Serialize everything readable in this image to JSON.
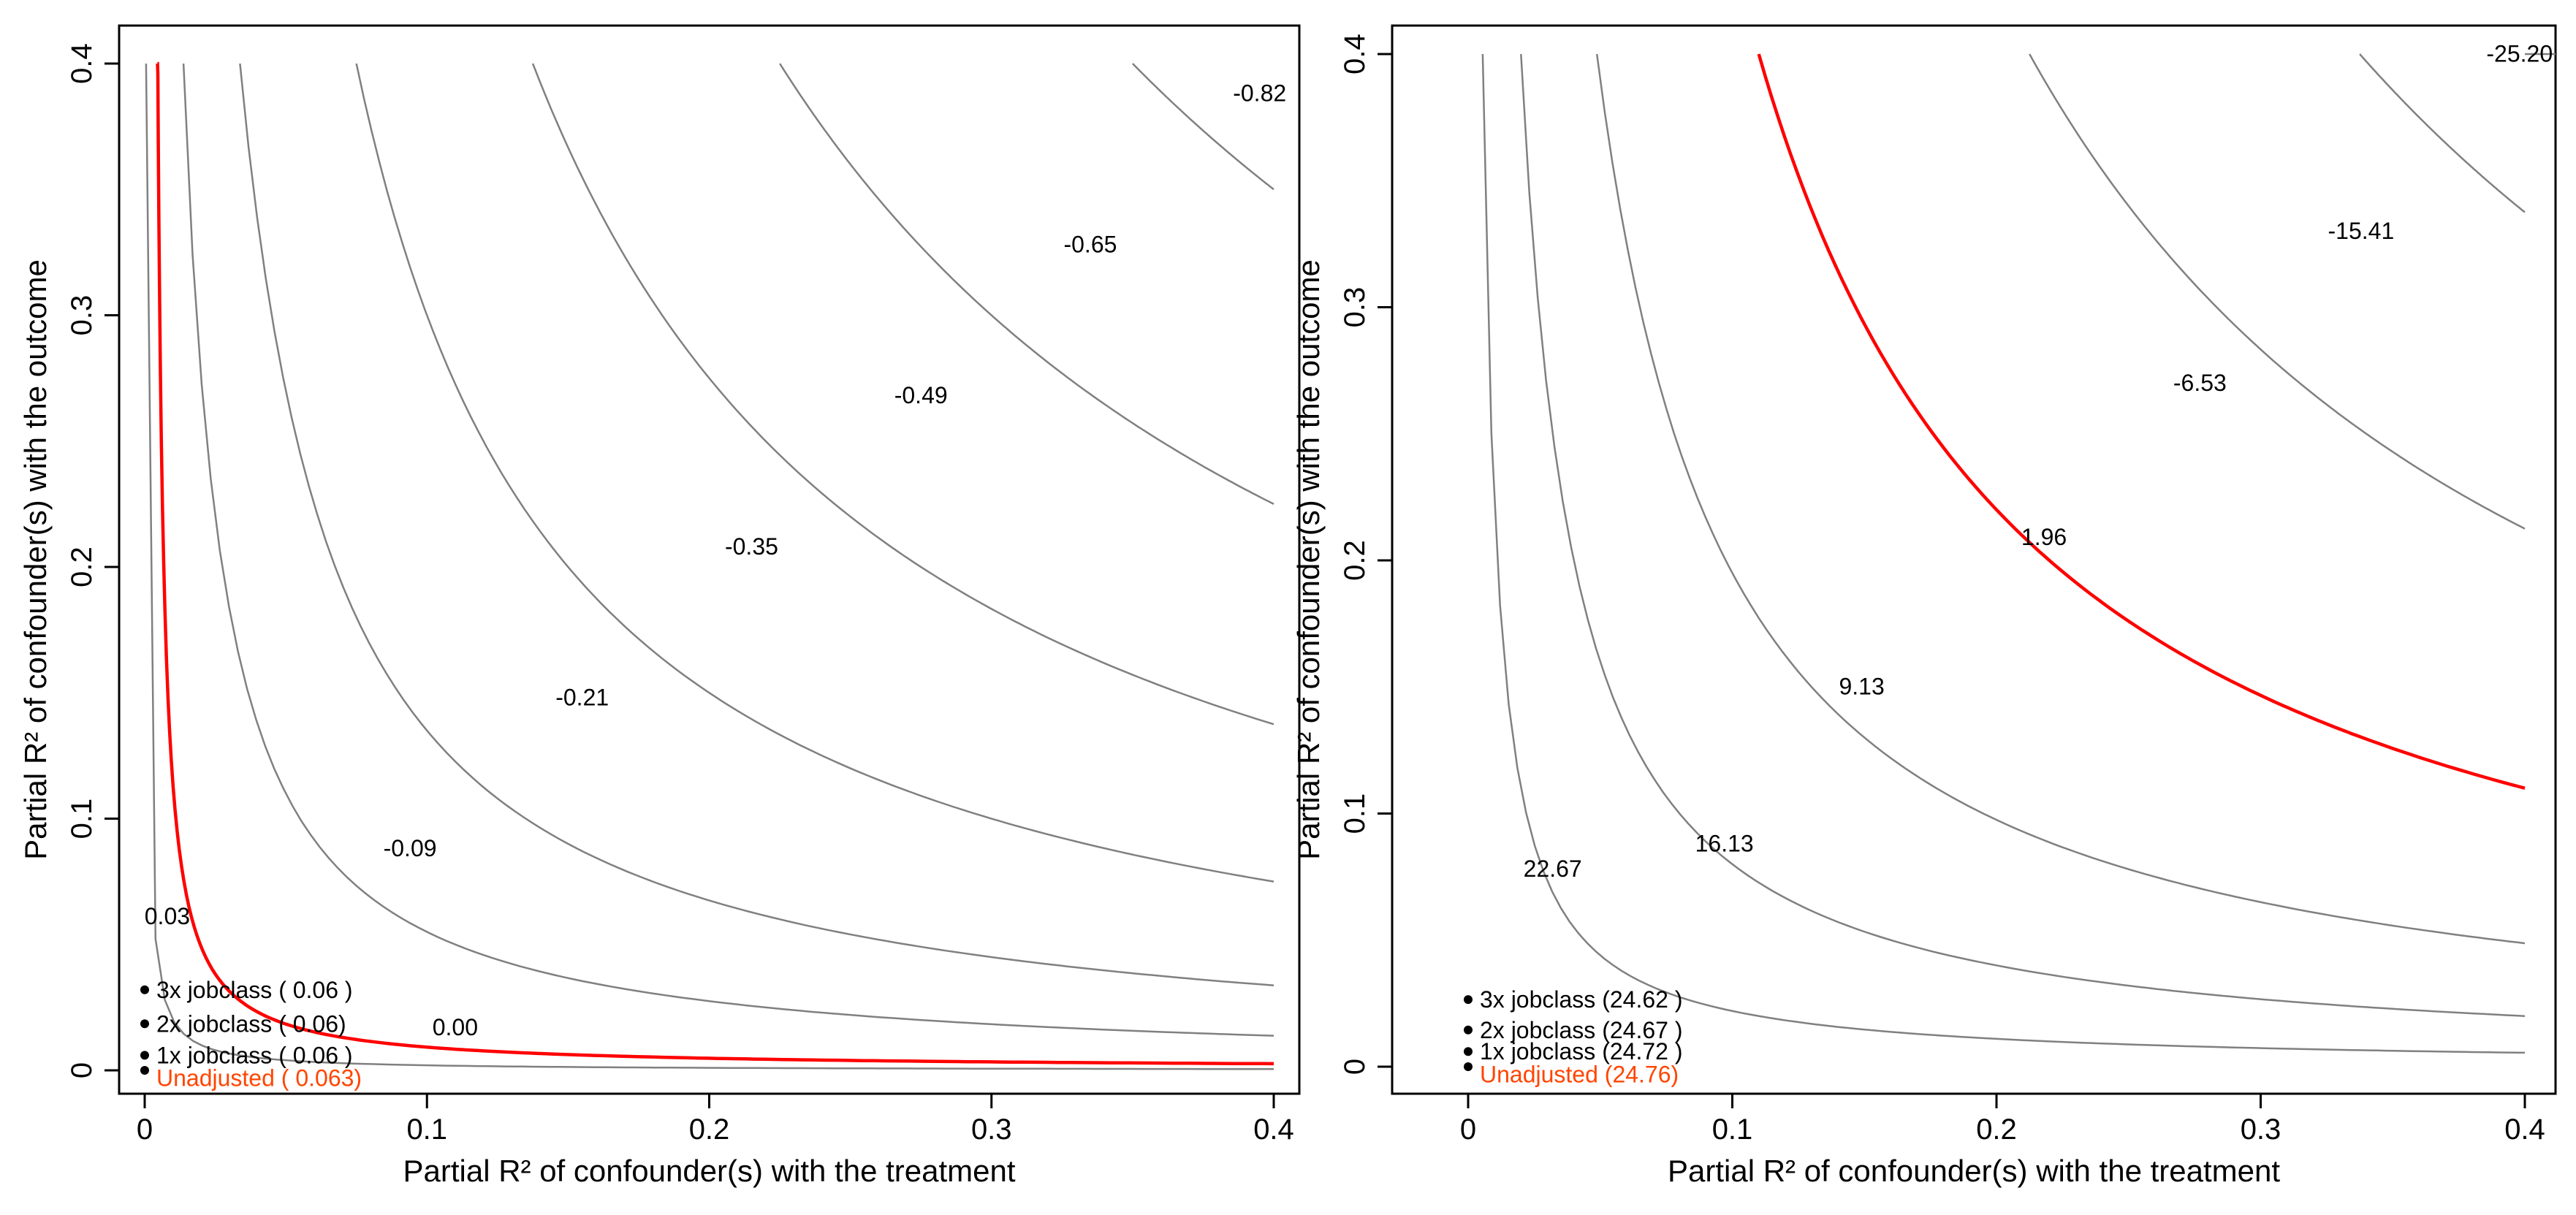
{
  "chart_data": [
    {
      "type": "contour",
      "xlabel": "Partial R² of confounder(s) with the treatment",
      "ylabel": "Partial R² of confounder(s) with the outcome",
      "xlim": [
        0,
        0.4
      ],
      "ylim": [
        0,
        0.4
      ],
      "xticks": [
        "0",
        "0.1",
        "0.2",
        "0.3",
        "0.4"
      ],
      "yticks": [
        "0",
        "0.1",
        "0.2",
        "0.3",
        "0.4"
      ],
      "contours": [
        {
          "level": "0.03",
          "k": 0.0002,
          "label_x": 0.008,
          "label_y": 0.058
        },
        {
          "level": "-0.09",
          "k": 0.0055,
          "label_x": 0.094,
          "label_y": 0.085
        },
        {
          "level": "-0.21",
          "k": 0.0135,
          "label_x": 0.155,
          "label_y": 0.145
        },
        {
          "level": "-0.35",
          "k": 0.03,
          "label_x": 0.215,
          "label_y": 0.205
        },
        {
          "level": "-0.49",
          "k": 0.055,
          "label_x": 0.275,
          "label_y": 0.265
        },
        {
          "level": "-0.65",
          "k": 0.09,
          "label_x": 0.335,
          "label_y": 0.325
        },
        {
          "level": "-0.82",
          "k": 0.14,
          "label_x": 0.395,
          "label_y": 0.385
        }
      ],
      "threshold": {
        "level": "0.00",
        "color": "#ff0000",
        "label_x": 0.11,
        "label_y": 0.014
      },
      "bounds": [
        {
          "label": "1x jobclass ( 0.06 )",
          "x": 0.0,
          "y": 0.006
        },
        {
          "label": "2x jobclass ( 0.06)",
          "x": 0.0,
          "y": 0.0185
        },
        {
          "label": "3x jobclass ( 0.06 )",
          "x": 0.0,
          "y": 0.032
        }
      ],
      "unadjusted": {
        "label": "Unadjusted ( 0.063)",
        "x": 0.0,
        "y": -0.003
      }
    },
    {
      "type": "contour",
      "xlabel": "Partial R² of confounder(s) with the treatment",
      "ylabel": "Partial R² of confounder(s) with the outcome",
      "xlim": [
        0,
        0.4
      ],
      "ylim": [
        0,
        0.4
      ],
      "xticks": [
        "0",
        "0.1",
        "0.2",
        "0.3",
        "0.4"
      ],
      "yticks": [
        "0",
        "0.1",
        "0.2",
        "0.3",
        "0.4"
      ],
      "contours": [
        {
          "level": "22.67",
          "k": 0.0022,
          "label_x": 0.032,
          "label_y": 0.075
        },
        {
          "level": "16.13",
          "k": 0.008,
          "label_x": 0.097,
          "label_y": 0.085
        },
        {
          "level": "9.13",
          "k": 0.0195,
          "label_x": 0.149,
          "label_y": 0.147
        },
        {
          "level": "-6.53",
          "k": 0.085,
          "label_x": 0.277,
          "label_y": 0.267
        },
        {
          "level": "-15.41",
          "k": 0.135,
          "label_x": 0.338,
          "label_y": 0.327
        },
        {
          "level": "-25.20",
          "k": 0.2,
          "label_x": 0.398,
          "label_y": 0.397
        }
      ],
      "threshold": {
        "level": "1.96",
        "color": "#ff0000",
        "k": 0.044,
        "label_x": 0.218,
        "label_y": 0.206
      },
      "bounds": [
        {
          "label": "1x jobclass (24.72 )",
          "x": 0.0,
          "y": 0.006
        },
        {
          "label": "2x jobclass (24.67 )",
          "x": 0.0,
          "y": 0.0145
        },
        {
          "label": "3x jobclass (24.62 )",
          "x": 0.0,
          "y": 0.0265
        }
      ],
      "unadjusted": {
        "label": "Unadjusted (24.76)",
        "x": 0.0,
        "y": -0.003
      }
    }
  ]
}
